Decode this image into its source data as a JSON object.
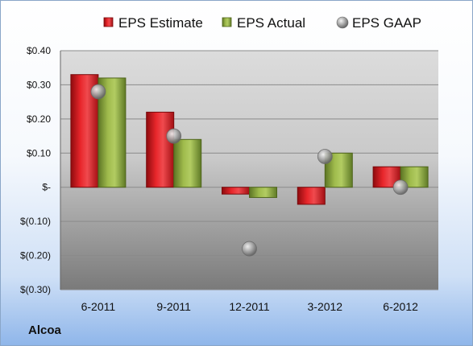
{
  "chart_data": {
    "type": "bar",
    "categories": [
      "6-2011",
      "9-2011",
      "12-2011",
      "3-2012",
      "6-2012"
    ],
    "series": [
      {
        "name": "EPS Estimate",
        "kind": "bar",
        "color": "#d11a1f",
        "values": [
          0.33,
          0.22,
          -0.02,
          -0.05,
          0.06
        ]
      },
      {
        "name": "EPS Actual",
        "kind": "bar",
        "color": "#8caa3c",
        "values": [
          0.32,
          0.14,
          -0.03,
          0.1,
          0.06
        ]
      },
      {
        "name": "EPS GAAP",
        "kind": "marker",
        "color": "#9a9a9a",
        "values": [
          0.28,
          0.15,
          -0.18,
          0.09,
          0.0
        ]
      }
    ],
    "ylim": [
      -0.3,
      0.4
    ],
    "yticks": [
      0.4,
      0.3,
      0.2,
      0.1,
      0.0,
      -0.1,
      -0.2,
      -0.3
    ],
    "ytick_labels": [
      "$0.40",
      "$0.30",
      "$0.20",
      "$0.10",
      "$-",
      "$(0.10)",
      "$(0.20)",
      "$(0.30)"
    ],
    "grid": true,
    "legend": "top"
  },
  "company": "Alcoa"
}
